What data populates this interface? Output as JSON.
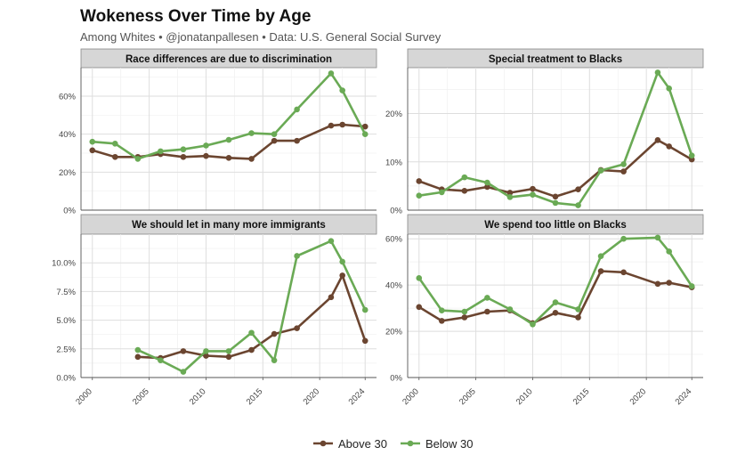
{
  "title": "Wokeness Over Time by Age",
  "subtitle": "Among Whites • @jonatanpallesen • Data: U.S. General Social Survey",
  "colors": {
    "above": "#6b4530",
    "below": "#6aaa55",
    "strip": "#d6d6d6"
  },
  "chart_data": {
    "type": "line",
    "legend": {
      "position": "bottom",
      "entries": [
        "Above 30",
        "Below 30"
      ]
    },
    "x_ticks": [
      2000,
      2005,
      2010,
      2015,
      2020,
      2024
    ],
    "xlim": [
      1999,
      2025
    ],
    "panels": [
      {
        "title": "Race differences are due to discrimination",
        "ylim": [
          0,
          75
        ],
        "y_ticks": [
          0,
          20,
          40,
          60
        ],
        "y_tick_labels": [
          "0%",
          "20%",
          "40%",
          "60%"
        ],
        "series": [
          {
            "name": "Above 30",
            "x": [
              2000,
              2002,
              2004,
              2006,
              2008,
              2010,
              2012,
              2014,
              2016,
              2018,
              2021,
              2022,
              2024
            ],
            "values": [
              31.5,
              28,
              28,
              29.5,
              28,
              28.5,
              27.5,
              27,
              36.5,
              36.5,
              44.5,
              45,
              44
            ]
          },
          {
            "name": "Below 30",
            "x": [
              2000,
              2002,
              2004,
              2006,
              2008,
              2010,
              2012,
              2014,
              2016,
              2018,
              2021,
              2022,
              2024
            ],
            "values": [
              36,
              35,
              27,
              31,
              32,
              34,
              37,
              40.5,
              40,
              53,
              72,
              63,
              40
            ]
          }
        ]
      },
      {
        "title": "Special treatment to Blacks",
        "ylim": [
          0,
          29.5
        ],
        "y_ticks": [
          0,
          10,
          20
        ],
        "y_tick_labels": [
          "0%",
          "10%",
          "20%"
        ],
        "series": [
          {
            "name": "Above 30",
            "x": [
              2000,
              2002,
              2004,
              2006,
              2008,
              2010,
              2012,
              2014,
              2016,
              2018,
              2021,
              2022,
              2024
            ],
            "values": [
              6,
              4.3,
              4,
              4.8,
              3.6,
              4.4,
              2.8,
              4.3,
              8.3,
              8,
              14.5,
              13.2,
              10.5
            ]
          },
          {
            "name": "Below 30",
            "x": [
              2000,
              2002,
              2004,
              2006,
              2008,
              2010,
              2012,
              2014,
              2016,
              2018,
              2021,
              2022,
              2024
            ],
            "values": [
              3,
              3.7,
              6.8,
              5.7,
              2.7,
              3.2,
              1.5,
              1,
              8.2,
              9.5,
              28.5,
              25.2,
              11.3
            ]
          }
        ]
      },
      {
        "title": "We should let in many more immigrants",
        "ylim": [
          0,
          12.5
        ],
        "y_ticks": [
          0,
          2.5,
          5,
          7.5,
          10
        ],
        "y_tick_labels": [
          "0.0%",
          "2.5%",
          "5.0%",
          "7.5%",
          "10.0%"
        ],
        "series": [
          {
            "name": "Above 30",
            "x": [
              2004,
              2006,
              2008,
              2010,
              2012,
              2014,
              2016,
              2018,
              2021,
              2022,
              2024
            ],
            "values": [
              1.8,
              1.7,
              2.3,
              1.9,
              1.8,
              2.4,
              3.8,
              4.3,
              7,
              8.9,
              3.2
            ]
          },
          {
            "name": "Below 30",
            "x": [
              2004,
              2006,
              2008,
              2010,
              2012,
              2014,
              2016,
              2018,
              2021,
              2022,
              2024
            ],
            "values": [
              2.4,
              1.5,
              0.5,
              2.3,
              2.3,
              3.9,
              1.5,
              10.6,
              11.9,
              10.1,
              5.9
            ]
          }
        ]
      },
      {
        "title": "We spend too little on Blacks",
        "ylim": [
          0,
          62
        ],
        "y_ticks": [
          0,
          20,
          40,
          60
        ],
        "y_tick_labels": [
          "0%",
          "20%",
          "40%",
          "60%"
        ],
        "series": [
          {
            "name": "Above 30",
            "x": [
              2000,
              2002,
              2004,
              2006,
              2008,
              2010,
              2012,
              2014,
              2016,
              2018,
              2021,
              2022,
              2024
            ],
            "values": [
              30.5,
              24.5,
              26,
              28.5,
              29,
              23.5,
              28,
              26,
              46,
              45.5,
              40.5,
              41,
              39
            ]
          },
          {
            "name": "Below 30",
            "x": [
              2000,
              2002,
              2004,
              2006,
              2008,
              2010,
              2012,
              2014,
              2016,
              2018,
              2021,
              2022,
              2024
            ],
            "values": [
              43,
              29,
              28.5,
              34.5,
              29.5,
              23,
              32.5,
              29.5,
              52.5,
              60,
              60.5,
              54.5,
              39.5
            ]
          }
        ]
      }
    ]
  }
}
